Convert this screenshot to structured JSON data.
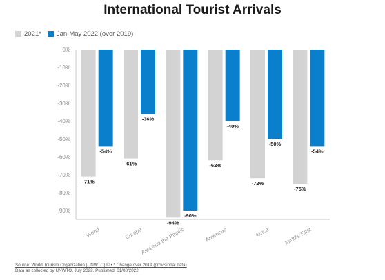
{
  "chart_data": {
    "type": "bar",
    "title": "International Tourist Arrivals",
    "categories": [
      "World",
      "Europe",
      "Asia and the Pacific",
      "Americas",
      "Africa",
      "Middle East"
    ],
    "series": [
      {
        "name": "2021*",
        "color": "#d3d3d3",
        "values": [
          -71,
          -61,
          -94,
          -62,
          -72,
          -75
        ],
        "labels": [
          "-71%",
          "-61%",
          "-94%",
          "-62%",
          "-72%",
          "-75%"
        ]
      },
      {
        "name": "Jan-May 2022 (over 2019)",
        "color": "#0a7fcc",
        "values": [
          -54,
          -36,
          -90,
          -40,
          -50,
          -54
        ],
        "labels": [
          "-54%",
          "-36%",
          "-90%",
          "-40%",
          "-50%",
          "-54%"
        ]
      }
    ],
    "y_ticks": [
      0,
      -10,
      -20,
      -30,
      -40,
      -50,
      -60,
      -70,
      -80,
      -90
    ],
    "y_tick_labels": [
      "0%",
      "-10%",
      "-20%",
      "-30%",
      "-40%",
      "-50%",
      "-60%",
      "-70%",
      "-80%",
      "-90%"
    ],
    "ylim": [
      -95,
      0
    ],
    "grid": false,
    "legend": "top-left"
  },
  "footer": {
    "source": "Source: World Tourism Organization (UNWTO) © • * Change over 2019 (provisional data)",
    "collected": "Data as collected by UNWTO, July 2022. Published: 01/08/2022"
  }
}
